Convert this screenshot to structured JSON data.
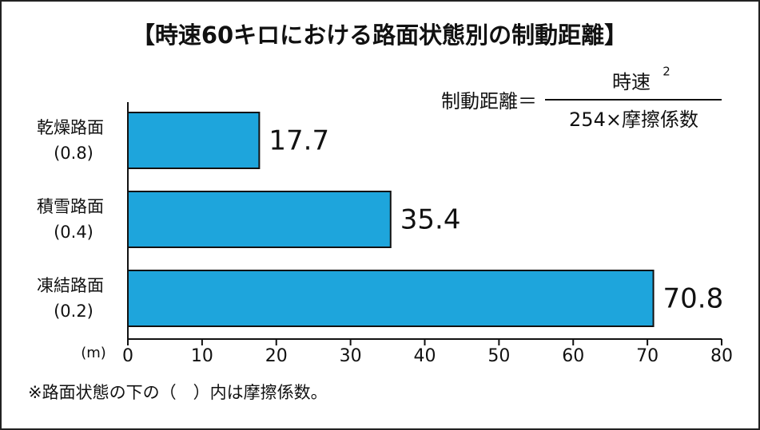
{
  "chart_data": {
    "type": "hbar",
    "title": "【時速60キロにおける路面状態別の制動距離】",
    "categories": [
      "乾燥路面",
      "積雪路面",
      "凍結路面"
    ],
    "sublabels": [
      "(0.8)",
      "(0.4)",
      "(0.2)"
    ],
    "values": [
      17.7,
      35.4,
      70.8
    ],
    "color": "#1ea5dc",
    "xlim": [
      0,
      80
    ],
    "xticks": [
      0,
      10,
      20,
      30,
      40,
      50,
      60,
      70,
      80
    ],
    "x_unit": "(m)",
    "formula": {
      "left": "制動距離＝",
      "numerator": "時速",
      "exponent": "2",
      "denominator": "254×摩擦係数"
    },
    "note": "※路面状態の下の（　）内は摩擦係数。"
  }
}
